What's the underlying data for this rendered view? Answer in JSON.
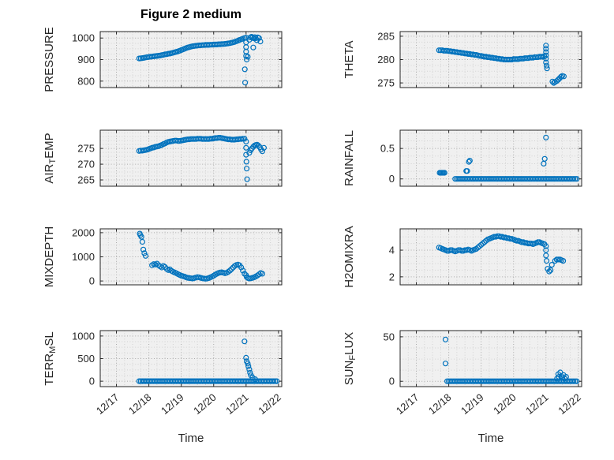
{
  "figure": {
    "title": "Figure 2 medium",
    "xlabel": "Time",
    "x_tick_labels": [
      "12/17",
      "12/18",
      "12/19",
      "12/20",
      "12/21",
      "12/22"
    ],
    "x_ticks": [
      17,
      18,
      19,
      20,
      21,
      22
    ],
    "xlim": [
      16.5,
      22.1
    ],
    "x_minor_step": 0.25,
    "y_minor_divisions": 4,
    "marker": "o",
    "marker_color": "#0072BD",
    "axis_color": "#262626",
    "plot_bg": "#f0f0f0",
    "grid_color": "#aaaaaa",
    "minor_grid_color": "#d2d2d2"
  },
  "chart_data": [
    {
      "type": "scatter",
      "id": "pressure",
      "name": "PRESSURE",
      "ylabel": [
        {
          "t": "PRESSURE"
        }
      ],
      "yticks": [
        800,
        900,
        1000
      ],
      "ylim": [
        770,
        1030
      ],
      "runs": [
        {
          "x0": 17.7,
          "dx": 0.05,
          "y": [
            905,
            906,
            907,
            908,
            910,
            911,
            912,
            913,
            914,
            915,
            916,
            917,
            918,
            919,
            921,
            922,
            924,
            925,
            927,
            928,
            930,
            932,
            934,
            936,
            938,
            941,
            944,
            947,
            950,
            953,
            956,
            958,
            960,
            962,
            963,
            964,
            965,
            966,
            966,
            967,
            967,
            968,
            968,
            968,
            969,
            969,
            970,
            970,
            970,
            971,
            971,
            972,
            972,
            973,
            974,
            975,
            976,
            978,
            980,
            982,
            985,
            988,
            991,
            994,
            997,
            1000
          ]
        }
      ],
      "points": [
        [
          20.96,
          855
        ],
        [
          20.97,
          793
        ],
        [
          21.0,
          1001
        ],
        [
          21.0,
          980
        ],
        [
          21.0,
          958
        ],
        [
          21.0,
          937
        ],
        [
          21.0,
          917
        ],
        [
          21.02,
          900
        ],
        [
          21.05,
          913
        ],
        [
          21.1,
          992
        ],
        [
          21.13,
          1003
        ],
        [
          21.17,
          1006
        ],
        [
          21.2,
          1002
        ],
        [
          21.22,
          956
        ],
        [
          21.24,
          998
        ],
        [
          21.27,
          1004
        ],
        [
          21.3,
          999
        ],
        [
          21.33,
          990
        ],
        [
          21.36,
          1003
        ],
        [
          21.4,
          1000
        ],
        [
          21.44,
          984
        ]
      ]
    },
    {
      "type": "scatter",
      "id": "theta",
      "name": "THETA",
      "ylabel": [
        {
          "t": "THETA"
        }
      ],
      "yticks": [
        275,
        280,
        285
      ],
      "ylim": [
        274,
        286
      ],
      "runs": [
        {
          "x0": 17.7,
          "dx": 0.05,
          "y": [
            282,
            282,
            282,
            281.9,
            281.9,
            281.9,
            281.8,
            281.8,
            281.7,
            281.7,
            281.6,
            281.6,
            281.5,
            281.5,
            281.4,
            281.4,
            281.3,
            281.3,
            281.2,
            281.2,
            281.1,
            281.1,
            281,
            281,
            280.9,
            280.8,
            280.8,
            280.7,
            280.6,
            280.6,
            280.5,
            280.5,
            280.4,
            280.4,
            280.3,
            280.3,
            280.2,
            280.2,
            280.1,
            280.1,
            280,
            280,
            280,
            280,
            280,
            280,
            280.1,
            280.1,
            280.1,
            280.1,
            280.2,
            280.2,
            280.2,
            280.3,
            280.3,
            280.3,
            280.4,
            280.4,
            280.4,
            280.5,
            280.5,
            280.5,
            280.6,
            280.6,
            280.6,
            280.7
          ]
        }
      ],
      "points": [
        [
          21.0,
          283.0
        ],
        [
          21.0,
          282.3
        ],
        [
          21.0,
          281.6
        ],
        [
          21.0,
          280.9
        ],
        [
          21.0,
          280.2
        ],
        [
          21.0,
          279.4
        ],
        [
          21.02,
          278.7
        ],
        [
          21.03,
          278.1
        ],
        [
          21.2,
          275.3
        ],
        [
          21.24,
          275.0
        ],
        [
          21.28,
          275.2
        ],
        [
          21.33,
          275.4
        ],
        [
          21.38,
          275.7
        ],
        [
          21.42,
          276.0
        ],
        [
          21.46,
          276.3
        ],
        [
          21.5,
          276.5
        ],
        [
          21.55,
          276.4
        ]
      ]
    },
    {
      "type": "scatter",
      "id": "airtemp",
      "name": "AIR_TEMP",
      "ylabel": [
        {
          "t": "AIR"
        },
        {
          "t": "T",
          "sub": true
        },
        {
          "t": "EMP"
        }
      ],
      "yticks": [
        265,
        270,
        275
      ],
      "ylim": [
        263,
        280.8
      ],
      "runs": [
        {
          "x0": 17.7,
          "dx": 0.05,
          "y": [
            274.2,
            274.3,
            274.3,
            274.4,
            274.5,
            274.6,
            274.8,
            275,
            275.2,
            275.3,
            275.5,
            275.6,
            275.7,
            275.9,
            276.1,
            276.4,
            276.6,
            276.9,
            277.1,
            277.2,
            277.3,
            277.4,
            277.5,
            277.5,
            277.4,
            277.4,
            277.5,
            277.6,
            277.7,
            277.8,
            277.9,
            277.9,
            278,
            278,
            278,
            278,
            278.1,
            278.1,
            278.1,
            278,
            278,
            278,
            278,
            278,
            278.1,
            278.1,
            278.2,
            278.3,
            278.3,
            278.4,
            278.4,
            278.3,
            278.2,
            278.1,
            278,
            277.9,
            277.9,
            277.8,
            277.8,
            277.8,
            277.9,
            277.9,
            278,
            278,
            278.1,
            278.1
          ]
        }
      ],
      "points": [
        [
          21.0,
          277.2
        ],
        [
          21.0,
          275.2
        ],
        [
          21.0,
          273.0
        ],
        [
          21.01,
          270.8
        ],
        [
          21.02,
          268.6
        ],
        [
          21.03,
          265.2
        ],
        [
          21.1,
          273.6
        ],
        [
          21.14,
          274.4
        ],
        [
          21.18,
          275.0
        ],
        [
          21.22,
          275.5
        ],
        [
          21.26,
          275.9
        ],
        [
          21.3,
          276.1
        ],
        [
          21.34,
          276.2
        ],
        [
          21.38,
          275.9
        ],
        [
          21.42,
          275.4
        ],
        [
          21.46,
          274.7
        ],
        [
          21.5,
          274.1
        ],
        [
          21.55,
          275.2
        ]
      ]
    },
    {
      "type": "scatter",
      "id": "rainfall",
      "name": "RAINFALL",
      "ylabel": [
        {
          "t": "RAINFALL"
        }
      ],
      "yticks": [
        0,
        0.5
      ],
      "ylim": [
        -0.12,
        0.8
      ],
      "runs": [
        {
          "x0": 17.72,
          "dx": 0.03,
          "y": [
            0.1,
            0.1,
            0.1,
            0.1,
            0.1,
            0.1
          ]
        },
        {
          "x0": 18.2,
          "dx": 0.05,
          "n": 76,
          "yc": 0
        }
      ],
      "points": [
        [
          18.54,
          0.13
        ],
        [
          18.57,
          0.13
        ],
        [
          18.62,
          0.28
        ],
        [
          18.65,
          0.3
        ],
        [
          20.93,
          0.25
        ],
        [
          20.96,
          0.33
        ],
        [
          21.0,
          0.68
        ]
      ]
    },
    {
      "type": "scatter",
      "id": "mixdepth",
      "name": "MIXDEPTH",
      "ylabel": [
        {
          "t": "MIXDEPTH"
        }
      ],
      "yticks": [
        0,
        1000,
        2000
      ],
      "ylim": [
        -160,
        2160
      ],
      "runs": [
        {
          "x0": 18.1,
          "dx": 0.05,
          "y": [
            650,
            700,
            680,
            720,
            650,
            600,
            560,
            620,
            580,
            500,
            450,
            480,
            420,
            380,
            350,
            320,
            280,
            250,
            220,
            200,
            180,
            150,
            130,
            120,
            110,
            100,
            120,
            140,
            160,
            150,
            130,
            110,
            100,
            90,
            100,
            120,
            150,
            180,
            220,
            260,
            300,
            330,
            350,
            360,
            340,
            320,
            340,
            380,
            430,
            490,
            560,
            620,
            660,
            680,
            650,
            560,
            430,
            300
          ]
        }
      ],
      "points": [
        [
          17.72,
          1960
        ],
        [
          17.74,
          1900
        ],
        [
          17.77,
          1830
        ],
        [
          17.8,
          1620
        ],
        [
          17.83,
          1300
        ],
        [
          17.86,
          1150
        ],
        [
          17.9,
          1040
        ],
        [
          21.0,
          240
        ],
        [
          21.02,
          160
        ],
        [
          21.06,
          120
        ],
        [
          21.1,
          100
        ],
        [
          21.15,
          110
        ],
        [
          21.2,
          130
        ],
        [
          21.25,
          155
        ],
        [
          21.3,
          185
        ],
        [
          21.35,
          225
        ],
        [
          21.4,
          275
        ],
        [
          21.45,
          330
        ],
        [
          21.5,
          300
        ]
      ]
    },
    {
      "type": "scatter",
      "id": "h2omixra",
      "name": "H2OMIXRA",
      "ylabel": [
        {
          "t": "H2OMIXRA"
        }
      ],
      "yticks": [
        2,
        4
      ],
      "ylim": [
        1.4,
        5.6
      ],
      "runs": [
        {
          "x0": 17.7,
          "dx": 0.05,
          "y": [
            4.2,
            4.15,
            4.1,
            4.05,
            4,
            3.95,
            3.95,
            4,
            4,
            3.95,
            3.9,
            3.95,
            4,
            4,
            3.95,
            3.95,
            4,
            4,
            4.05,
            4,
            3.95,
            4,
            4.05,
            4.1,
            4.2,
            4.3,
            4.4,
            4.5,
            4.6,
            4.7,
            4.8,
            4.85,
            4.9,
            4.95,
            5,
            5,
            5.05,
            5.05,
            5,
            5,
            4.95,
            4.95,
            4.9,
            4.9,
            4.85,
            4.85,
            4.8,
            4.75,
            4.7,
            4.7,
            4.65,
            4.6,
            4.6,
            4.55,
            4.55,
            4.5,
            4.5,
            4.5,
            4.45,
            4.5,
            4.55,
            4.6,
            4.6,
            4.55,
            4.5,
            4.45
          ]
        }
      ],
      "points": [
        [
          21.0,
          4.3
        ],
        [
          21.0,
          4.0
        ],
        [
          21.0,
          3.6
        ],
        [
          21.02,
          3.2
        ],
        [
          21.05,
          2.6
        ],
        [
          21.1,
          2.4
        ],
        [
          21.14,
          2.5
        ],
        [
          21.18,
          2.9
        ],
        [
          21.28,
          3.2
        ],
        [
          21.33,
          3.3
        ],
        [
          21.38,
          3.3
        ],
        [
          21.43,
          3.3
        ],
        [
          21.48,
          3.25
        ],
        [
          21.53,
          3.2
        ]
      ]
    },
    {
      "type": "scatter",
      "id": "terrmsl",
      "name": "TERR_MSL",
      "ylabel": [
        {
          "t": "TERR"
        },
        {
          "t": "M",
          "sub": true
        },
        {
          "t": "SL"
        }
      ],
      "yticks": [
        0,
        500,
        1000
      ],
      "ylim": [
        -120,
        1120
      ],
      "runs": [
        {
          "x0": 17.7,
          "dx": 0.05,
          "n": 86,
          "yc": 0
        }
      ],
      "points": [
        [
          20.95,
          880
        ],
        [
          21.0,
          520
        ],
        [
          21.02,
          440
        ],
        [
          21.05,
          390
        ],
        [
          21.07,
          330
        ],
        [
          21.1,
          260
        ],
        [
          21.12,
          190
        ],
        [
          21.15,
          130
        ],
        [
          21.2,
          80
        ],
        [
          21.28,
          45
        ]
      ]
    },
    {
      "type": "scatter",
      "id": "sunflux",
      "name": "SUN_FLUX",
      "ylabel": [
        {
          "t": "SUN"
        },
        {
          "t": "F",
          "sub": true
        },
        {
          "t": "LUX"
        }
      ],
      "yticks": [
        0,
        50
      ],
      "ylim": [
        -6,
        57
      ],
      "runs": [
        {
          "x0": 17.95,
          "dx": 0.05,
          "n": 81,
          "yc": 0
        }
      ],
      "points": [
        [
          17.9,
          47
        ],
        [
          17.9,
          20
        ],
        [
          21.34,
          3
        ],
        [
          21.38,
          8
        ],
        [
          21.4,
          5
        ],
        [
          21.44,
          10
        ],
        [
          21.47,
          6
        ],
        [
          21.5,
          4
        ],
        [
          21.54,
          7
        ],
        [
          21.58,
          3
        ],
        [
          21.62,
          5
        ]
      ]
    }
  ]
}
